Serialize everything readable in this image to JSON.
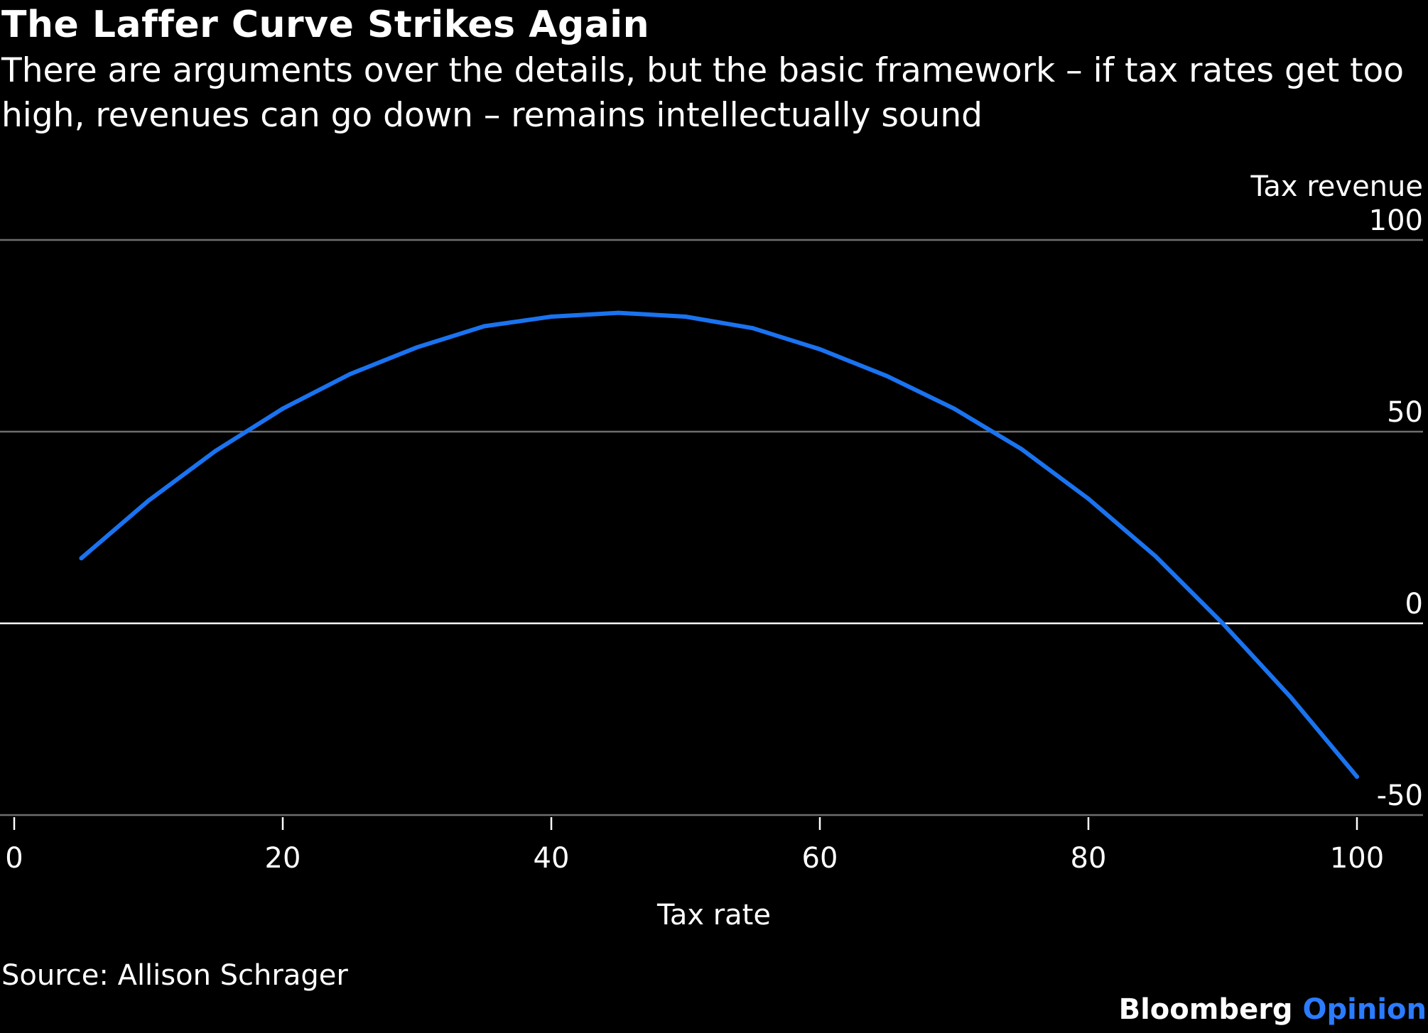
{
  "title": "The Laffer Curve Strikes Again",
  "subtitle": "There are arguments over the details, but the basic framework – if tax rates get too high, revenues can go down – remains intellectually sound",
  "source": "Source: Allison Schrager",
  "brand": {
    "name": "Bloomberg",
    "accent": "Opinion",
    "accent_color": "#2b7bff"
  },
  "chart_data": {
    "type": "line",
    "title": "The Laffer Curve Strikes Again",
    "xlabel": "Tax rate",
    "ylabel": "Tax revenue",
    "xlim": [
      0,
      100
    ],
    "ylim": [
      -50,
      100
    ],
    "x_ticks": [
      "0",
      "20",
      "40",
      "60",
      "80",
      "100"
    ],
    "y_ticks": [
      "100",
      "50",
      "0",
      "-50"
    ],
    "y_axis_side": "right",
    "grid": true,
    "legend": "none",
    "series": [
      {
        "color": "#1a73f0",
        "x": [
          5,
          10,
          15,
          20,
          25,
          30,
          35,
          40,
          45,
          50,
          55,
          60,
          65,
          70,
          75,
          80,
          85,
          90,
          95,
          100
        ],
        "values": [
          17,
          32,
          45,
          56,
          65,
          72,
          77.5,
          80,
          81,
          80,
          77,
          71.5,
          64.5,
          56,
          45.5,
          32.5,
          17.5,
          0,
          -19,
          -40
        ]
      }
    ],
    "colors": {
      "background": "#000000",
      "text": "#ffffff",
      "gridline": "#6e6e6e",
      "zero_line": "#ffffff",
      "line": "#1a73f0"
    }
  }
}
